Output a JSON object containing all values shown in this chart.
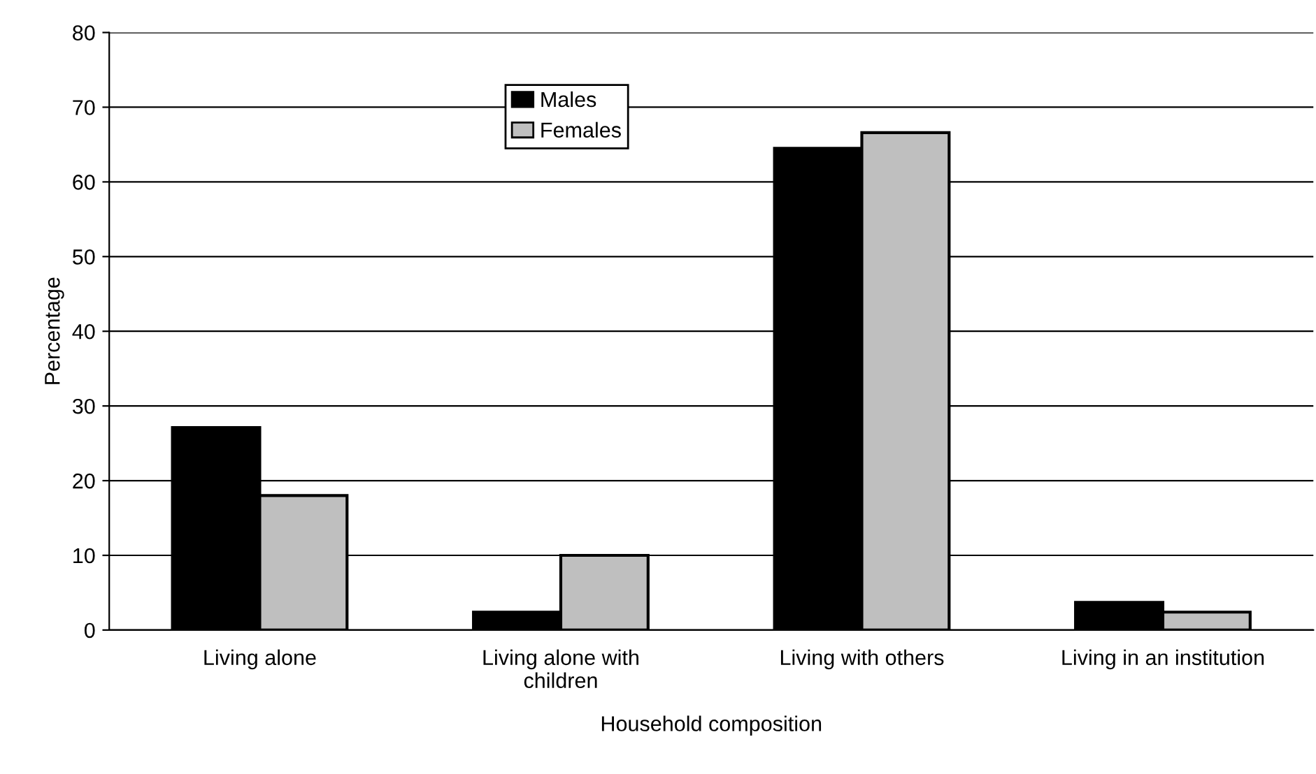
{
  "chart_data": {
    "type": "bar",
    "xlabel": "Household composition",
    "ylabel": "Percentage",
    "categories": [
      "Living alone",
      "Living alone with\nchildren",
      "Living with others",
      "Living in an institution"
    ],
    "series": [
      {
        "name": "Males",
        "color": "#000000",
        "values": [
          27.1,
          2.4,
          64.5,
          3.7
        ]
      },
      {
        "name": "Females",
        "color": "#bfbfbf",
        "values": [
          18.0,
          10.0,
          66.6,
          2.4
        ]
      }
    ],
    "ylim": [
      0,
      80
    ],
    "yticks": [
      0,
      10,
      20,
      30,
      40,
      50,
      60,
      70,
      80
    ],
    "grid": "y",
    "legend": "top"
  }
}
